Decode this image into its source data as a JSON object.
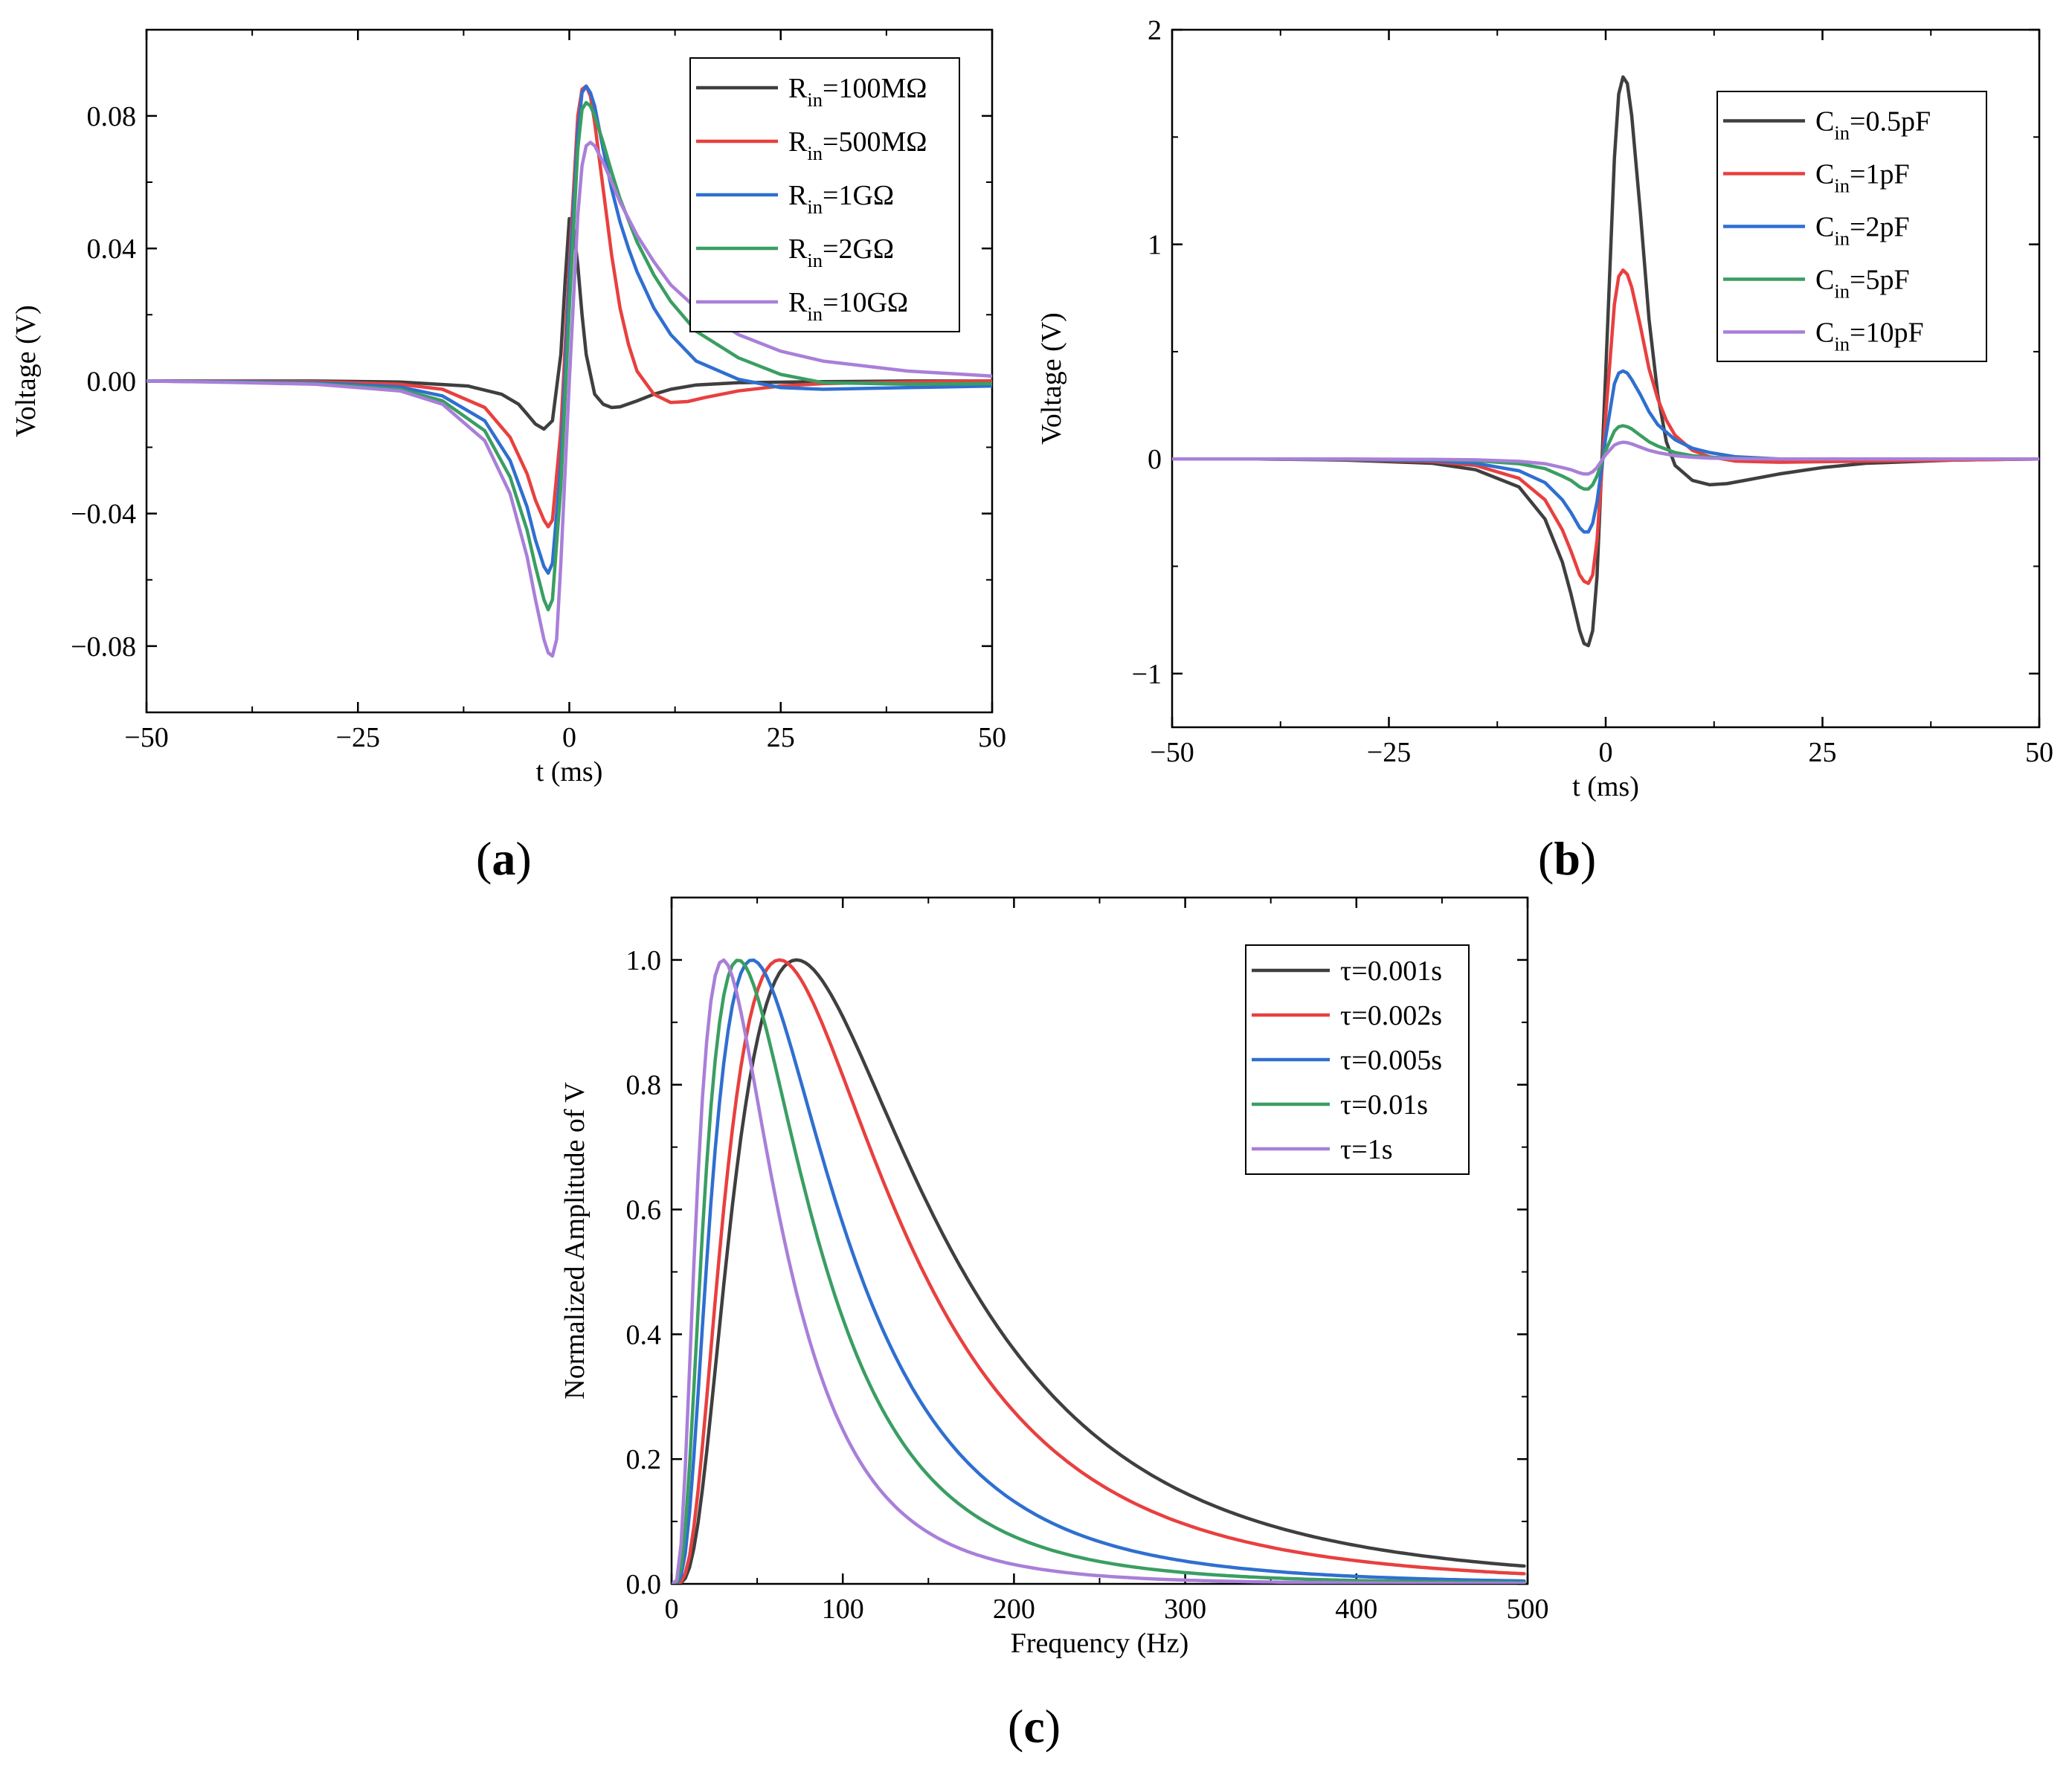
{
  "chart_data": [
    {
      "id": "a",
      "panel_label": "a",
      "type": "line",
      "xlabel": "t (ms)",
      "ylabel": "Voltage (V)",
      "xlim": [
        -50,
        50
      ],
      "ylim": [
        -0.1,
        0.106
      ],
      "xticks": [
        -50,
        -25,
        0,
        25,
        50
      ],
      "xtick_labels": [
        "−50",
        "−25",
        "0",
        "25",
        "50"
      ],
      "yticks": [
        -0.08,
        -0.04,
        0.0,
        0.04,
        0.08
      ],
      "ytick_labels": [
        "−0.08",
        "−0.04",
        "0.00",
        "0.04",
        "0.08"
      ],
      "legend_position": "top-right",
      "series": [
        {
          "name": "R_in=100MΩ",
          "legend": {
            "base": "R",
            "sub": "in",
            "rest": "=100MΩ"
          },
          "color": "#3f3f3f",
          "x": [
            -50,
            -40,
            -30,
            -20,
            -12,
            -8,
            -6,
            -5,
            -4,
            -3,
            -2,
            -1,
            -0.5,
            0,
            0.5,
            1,
            1.5,
            2,
            3,
            4,
            5,
            6,
            8,
            10,
            12,
            15,
            20,
            30,
            40,
            50
          ],
          "y": [
            0,
            0,
            0,
            -0.0003,
            -0.0015,
            -0.004,
            -0.007,
            -0.01,
            -0.013,
            -0.0145,
            -0.012,
            0.008,
            0.03,
            0.049,
            0.046,
            0.035,
            0.02,
            0.008,
            -0.004,
            -0.007,
            -0.008,
            -0.0078,
            -0.006,
            -0.004,
            -0.0025,
            -0.0012,
            -0.0005,
            -0.0002,
            0,
            0
          ]
        },
        {
          "name": "R_in=500MΩ",
          "legend": {
            "base": "R",
            "sub": "in",
            "rest": "=500MΩ"
          },
          "color": "#e8403f",
          "x": [
            -50,
            -40,
            -30,
            -20,
            -15,
            -10,
            -7,
            -5,
            -4,
            -3,
            -2.5,
            -2,
            -1,
            0,
            1,
            1.5,
            2,
            2.5,
            3,
            4,
            5,
            6,
            7,
            8,
            10,
            12,
            14,
            16,
            20,
            25,
            30,
            40,
            50
          ],
          "y": [
            0,
            -0.0001,
            -0.0002,
            -0.001,
            -0.0025,
            -0.008,
            -0.017,
            -0.028,
            -0.036,
            -0.042,
            -0.044,
            -0.042,
            -0.015,
            0.035,
            0.08,
            0.088,
            0.089,
            0.086,
            0.078,
            0.058,
            0.038,
            0.022,
            0.011,
            0.003,
            -0.004,
            -0.0065,
            -0.0062,
            -0.005,
            -0.003,
            -0.0015,
            -0.0008,
            -0.0003,
            0
          ]
        },
        {
          "name": "R_in=1GΩ",
          "legend": {
            "base": "R",
            "sub": "in",
            "rest": "=1GΩ"
          },
          "color": "#2f6fd0",
          "x": [
            -50,
            -40,
            -30,
            -20,
            -15,
            -10,
            -7,
            -5,
            -4,
            -3,
            -2.5,
            -2,
            -1,
            0,
            1,
            1.5,
            2,
            2.5,
            3,
            4,
            5,
            6,
            7,
            8,
            10,
            12,
            15,
            20,
            25,
            30,
            40,
            50
          ],
          "y": [
            0,
            -0.0002,
            -0.0005,
            -0.0018,
            -0.0045,
            -0.012,
            -0.024,
            -0.038,
            -0.048,
            -0.056,
            -0.058,
            -0.055,
            -0.025,
            0.03,
            0.075,
            0.087,
            0.089,
            0.087,
            0.083,
            0.07,
            0.058,
            0.048,
            0.04,
            0.033,
            0.022,
            0.014,
            0.006,
            0.0005,
            -0.002,
            -0.0025,
            -0.002,
            -0.0015
          ]
        },
        {
          "name": "R_in=2GΩ",
          "legend": {
            "base": "R",
            "sub": "in",
            "rest": "=2GΩ"
          },
          "color": "#3a9e62",
          "x": [
            -50,
            -40,
            -30,
            -20,
            -15,
            -10,
            -7,
            -5,
            -4,
            -3,
            -2.5,
            -2,
            -1,
            0,
            1,
            1.5,
            2,
            2.5,
            3,
            4,
            5,
            6,
            8,
            10,
            12,
            15,
            20,
            25,
            30,
            40,
            50
          ],
          "y": [
            0,
            -0.0003,
            -0.0008,
            -0.0025,
            -0.006,
            -0.015,
            -0.029,
            -0.045,
            -0.056,
            -0.066,
            -0.069,
            -0.066,
            -0.032,
            0.022,
            0.07,
            0.082,
            0.084,
            0.083,
            0.08,
            0.072,
            0.063,
            0.055,
            0.042,
            0.032,
            0.024,
            0.015,
            0.007,
            0.002,
            -0.0005,
            -0.001,
            -0.0008
          ]
        },
        {
          "name": "R_in=10GΩ",
          "legend": {
            "base": "R",
            "sub": "in",
            "rest": "=10GΩ"
          },
          "color": "#a97fd9",
          "x": [
            -50,
            -40,
            -30,
            -20,
            -15,
            -10,
            -7,
            -5,
            -4,
            -3,
            -2.5,
            -2,
            -1.5,
            -1,
            0,
            1,
            1.5,
            2,
            2.5,
            3,
            4,
            5,
            6,
            8,
            10,
            12,
            15,
            20,
            25,
            30,
            40,
            50
          ],
          "y": [
            0,
            -0.0004,
            -0.001,
            -0.003,
            -0.007,
            -0.018,
            -0.034,
            -0.053,
            -0.066,
            -0.078,
            -0.082,
            -0.083,
            -0.078,
            -0.055,
            0.0,
            0.05,
            0.065,
            0.071,
            0.072,
            0.071,
            0.066,
            0.06,
            0.054,
            0.044,
            0.036,
            0.029,
            0.022,
            0.014,
            0.009,
            0.006,
            0.003,
            0.0015
          ]
        }
      ]
    },
    {
      "id": "b",
      "panel_label": "b",
      "type": "line",
      "xlabel": "t (ms)",
      "ylabel": "Voltage (V)",
      "xlim": [
        -50,
        50
      ],
      "ylim": [
        -1.25,
        2.0
      ],
      "xticks": [
        -50,
        -25,
        0,
        25,
        50
      ],
      "xtick_labels": [
        "−50",
        "−25",
        "0",
        "25",
        "50"
      ],
      "yticks": [
        -1,
        0,
        1,
        2
      ],
      "ytick_labels": [
        "−1",
        "0",
        "1",
        "2"
      ],
      "legend_position": "top-right",
      "series": [
        {
          "name": "C_in=0.5pF",
          "legend": {
            "base": "C",
            "sub": "in",
            "rest": "=0.5pF"
          },
          "color": "#3f3f3f",
          "x": [
            -50,
            -40,
            -30,
            -20,
            -15,
            -10,
            -7,
            -5,
            -4,
            -3,
            -2.5,
            -2,
            -1.5,
            -1,
            0,
            1,
            1.5,
            2,
            2.5,
            3,
            4,
            5,
            6,
            7,
            8,
            10,
            12,
            14,
            16,
            20,
            25,
            30,
            40,
            50
          ],
          "y": [
            0,
            0,
            -0.005,
            -0.02,
            -0.05,
            -0.13,
            -0.28,
            -0.48,
            -0.63,
            -0.8,
            -0.86,
            -0.87,
            -0.8,
            -0.55,
            0.4,
            1.4,
            1.7,
            1.78,
            1.75,
            1.6,
            1.15,
            0.65,
            0.3,
            0.08,
            -0.03,
            -0.1,
            -0.12,
            -0.115,
            -0.1,
            -0.07,
            -0.04,
            -0.02,
            -0.005,
            0
          ]
        },
        {
          "name": "C_in=1pF",
          "legend": {
            "base": "C",
            "sub": "in",
            "rest": "=1pF"
          },
          "color": "#e8403f",
          "x": [
            -50,
            -40,
            -30,
            -20,
            -15,
            -10,
            -7,
            -5,
            -4,
            -3,
            -2.5,
            -2,
            -1.5,
            -1,
            0,
            1,
            1.5,
            2,
            2.5,
            3,
            4,
            5,
            6,
            7,
            8,
            10,
            12,
            15,
            20,
            30,
            40,
            50
          ],
          "y": [
            0,
            0,
            -0.003,
            -0.012,
            -0.03,
            -0.09,
            -0.19,
            -0.33,
            -0.43,
            -0.54,
            -0.57,
            -0.58,
            -0.54,
            -0.38,
            0.2,
            0.72,
            0.85,
            0.88,
            0.86,
            0.8,
            0.62,
            0.42,
            0.28,
            0.18,
            0.11,
            0.04,
            0.01,
            -0.01,
            -0.015,
            -0.01,
            -0.005,
            0
          ]
        },
        {
          "name": "C_in=2pF",
          "legend": {
            "base": "C",
            "sub": "in",
            "rest": "=2pF"
          },
          "color": "#2f6fd0",
          "x": [
            -50,
            -40,
            -30,
            -20,
            -15,
            -10,
            -7,
            -5,
            -4,
            -3,
            -2.5,
            -2,
            -1.5,
            -1,
            0,
            1,
            1.5,
            2,
            2.5,
            3,
            4,
            5,
            6,
            8,
            10,
            12,
            15,
            20,
            30,
            40,
            50
          ],
          "y": [
            0,
            0,
            -0.002,
            -0.008,
            -0.02,
            -0.055,
            -0.11,
            -0.19,
            -0.25,
            -0.32,
            -0.34,
            -0.34,
            -0.3,
            -0.2,
            0.1,
            0.35,
            0.4,
            0.41,
            0.4,
            0.37,
            0.3,
            0.22,
            0.16,
            0.09,
            0.05,
            0.03,
            0.01,
            0,
            0,
            0,
            0
          ]
        },
        {
          "name": "C_in=5pF",
          "legend": {
            "base": "C",
            "sub": "in",
            "rest": "=5pF"
          },
          "color": "#3a9e62",
          "x": [
            -50,
            -40,
            -30,
            -20,
            -15,
            -10,
            -7,
            -5,
            -4,
            -3,
            -2.5,
            -2,
            -1.5,
            -1,
            0,
            1,
            1.5,
            2,
            2.5,
            3,
            4,
            5,
            6,
            8,
            10,
            12,
            15,
            20,
            30,
            40,
            50
          ],
          "y": [
            0,
            0,
            -0.001,
            -0.003,
            -0.008,
            -0.022,
            -0.045,
            -0.08,
            -0.1,
            -0.13,
            -0.14,
            -0.14,
            -0.12,
            -0.08,
            0.04,
            0.13,
            0.15,
            0.155,
            0.15,
            0.14,
            0.11,
            0.08,
            0.06,
            0.03,
            0.015,
            0.008,
            0.003,
            0,
            0,
            0,
            0
          ]
        },
        {
          "name": "C_in=10pF",
          "legend": {
            "base": "C",
            "sub": "in",
            "rest": "=10pF"
          },
          "color": "#a97fd9",
          "x": [
            -50,
            -40,
            -30,
            -20,
            -15,
            -10,
            -7,
            -5,
            -4,
            -3,
            -2.5,
            -2,
            -1.5,
            -1,
            0,
            1,
            1.5,
            2,
            2.5,
            3,
            4,
            5,
            6,
            8,
            10,
            12,
            15,
            20,
            30,
            40,
            50
          ],
          "y": [
            0,
            0,
            0,
            -0.002,
            -0.004,
            -0.011,
            -0.022,
            -0.04,
            -0.05,
            -0.065,
            -0.07,
            -0.07,
            -0.06,
            -0.04,
            0.02,
            0.065,
            0.074,
            0.078,
            0.076,
            0.07,
            0.055,
            0.04,
            0.03,
            0.015,
            0.008,
            0.004,
            0.0015,
            0,
            0,
            0,
            0
          ]
        }
      ]
    },
    {
      "id": "c",
      "panel_label": "c",
      "type": "line",
      "xlabel": "Frequency (Hz)",
      "ylabel": "Normalized Amplitude of V",
      "xlim": [
        0,
        500
      ],
      "ylim": [
        0,
        1.1
      ],
      "xticks": [
        0,
        100,
        200,
        300,
        400,
        500
      ],
      "xtick_labels": [
        "0",
        "100",
        "200",
        "300",
        "400",
        "500"
      ],
      "yticks": [
        0,
        0.2,
        0.4,
        0.6,
        0.8,
        1.0
      ],
      "ytick_labels": [
        "0.0",
        "0.2",
        "0.4",
        "0.6",
        "0.8",
        "1.0"
      ],
      "legend_position": "top-right",
      "series": [
        {
          "name": "τ=0.001s",
          "color": "#3f3f3f",
          "peak_frequency_hz": 73
        },
        {
          "name": "τ=0.002s",
          "color": "#e8403f",
          "peak_frequency_hz": 63
        },
        {
          "name": "τ=0.005s",
          "color": "#2f6fd0",
          "peak_frequency_hz": 47
        },
        {
          "name": "τ=0.01s",
          "color": "#3a9e62",
          "peak_frequency_hz": 39
        },
        {
          "name": "τ=1s",
          "color": "#a97fd9",
          "peak_frequency_hz": 30
        }
      ]
    }
  ]
}
